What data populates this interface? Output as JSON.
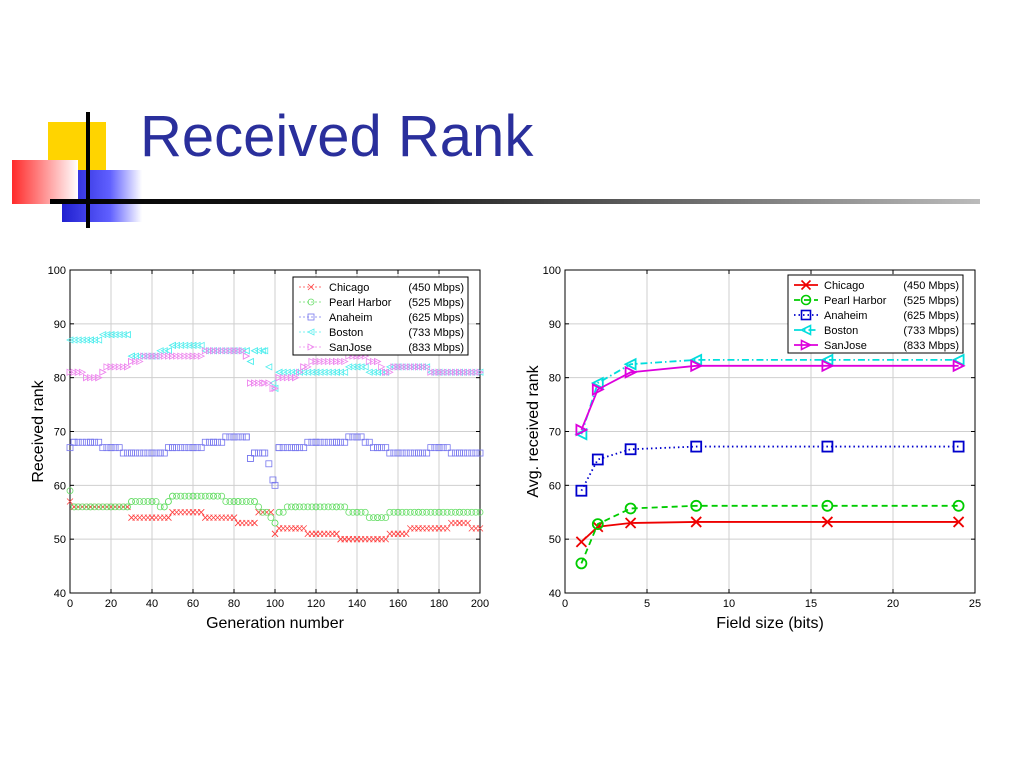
{
  "slide": {
    "title": "Received Rank",
    "colors": {
      "title": "#2a2f9c",
      "accent_yellow": "#ffd400",
      "accent_red": "#ff3030",
      "accent_blue": "#2020d0"
    }
  },
  "chart_data": [
    {
      "type": "scatter",
      "xlabel": "Generation number",
      "ylabel": "Received rank",
      "xlim": [
        0,
        200
      ],
      "ylim": [
        40,
        100
      ],
      "xticks": [
        0,
        20,
        40,
        60,
        80,
        100,
        120,
        140,
        160,
        180,
        200
      ],
      "yticks": [
        40,
        50,
        60,
        70,
        80,
        90,
        100
      ],
      "grid": true,
      "legend_position": "top-right",
      "series": [
        {
          "name": "Chicago",
          "rate": "(450 Mbps)",
          "color": "#ff4444",
          "marker": "x",
          "x": [
            0,
            2,
            10,
            20,
            28,
            30,
            40,
            48,
            50,
            60,
            64,
            66,
            80,
            82,
            90,
            92,
            98,
            100,
            102,
            110,
            120,
            130,
            132,
            134,
            136,
            140,
            150,
            160,
            170,
            180,
            190,
            200
          ],
          "y": [
            57,
            56,
            56,
            56,
            56,
            54,
            54,
            54,
            55,
            55,
            55,
            54,
            54,
            53,
            53,
            55,
            55,
            51,
            52,
            52,
            51,
            51,
            50,
            50,
            50,
            50,
            50,
            51,
            52,
            52,
            53,
            52
          ]
        },
        {
          "name": "Pearl Harbor",
          "rate": "(525 Mbps)",
          "color": "#66dd66",
          "marker": "o",
          "x": [
            0,
            2,
            10,
            20,
            28,
            30,
            40,
            46,
            48,
            50,
            60,
            70,
            80,
            82,
            90,
            100,
            102,
            110,
            120,
            130,
            140,
            150,
            160,
            170,
            180,
            190,
            200
          ],
          "y": [
            59,
            56,
            56,
            56,
            56,
            57,
            57,
            56,
            57,
            58,
            58,
            58,
            57,
            57,
            57,
            53,
            55,
            56,
            56,
            56,
            55,
            54,
            55,
            55,
            55,
            55,
            55
          ]
        },
        {
          "name": "Anaheim",
          "rate": "(625 Mbps)",
          "color": "#7777ee",
          "marker": "s",
          "x": [
            0,
            2,
            10,
            20,
            30,
            40,
            44,
            50,
            60,
            70,
            80,
            86,
            88,
            90,
            95,
            100,
            102,
            110,
            120,
            130,
            140,
            150,
            160,
            170,
            180,
            190,
            200
          ],
          "y": [
            67,
            68,
            68,
            67,
            66,
            66,
            66,
            67,
            67,
            68,
            69,
            69,
            65,
            66,
            66,
            60,
            67,
            67,
            68,
            68,
            69,
            67,
            66,
            66,
            67,
            66,
            66
          ]
        },
        {
          "name": "Boston",
          "rate": "(733 Mbps)",
          "color": "#55eeee",
          "marker": "<",
          "x": [
            0,
            10,
            20,
            28,
            30,
            40,
            48,
            50,
            60,
            70,
            80,
            86,
            88,
            90,
            95,
            100,
            102,
            110,
            120,
            130,
            140,
            150,
            160,
            170,
            180,
            190,
            200
          ],
          "y": [
            87,
            87,
            88,
            88,
            84,
            84,
            85,
            86,
            86,
            85,
            85,
            85,
            83,
            85,
            85,
            78,
            81,
            81,
            81,
            81,
            82,
            81,
            82,
            82,
            81,
            81,
            81
          ]
        },
        {
          "name": "SanJose",
          "rate": "(833 Mbps)",
          "color": "#ee88ee",
          "marker": ">",
          "x": [
            0,
            4,
            8,
            14,
            16,
            20,
            28,
            30,
            40,
            50,
            60,
            70,
            80,
            84,
            86,
            88,
            90,
            95,
            100,
            102,
            110,
            114,
            120,
            130,
            140,
            150,
            154,
            160,
            170,
            180,
            190,
            200
          ],
          "y": [
            81,
            81,
            80,
            80,
            81,
            82,
            82,
            83,
            84,
            84,
            84,
            85,
            85,
            85,
            84,
            79,
            79,
            79,
            78,
            80,
            80,
            82,
            83,
            83,
            84,
            83,
            81,
            82,
            82,
            81,
            81,
            81
          ]
        }
      ]
    },
    {
      "type": "line",
      "xlabel": "Field size (bits)",
      "ylabel": "Avg. received rank",
      "xlim": [
        0,
        25
      ],
      "ylim": [
        40,
        100
      ],
      "xticks": [
        0,
        5,
        10,
        15,
        20,
        25
      ],
      "yticks": [
        40,
        50,
        60,
        70,
        80,
        90,
        100
      ],
      "grid": true,
      "legend_position": "top-right",
      "x": [
        1,
        2,
        4,
        8,
        16,
        24
      ],
      "series": [
        {
          "name": "Chicago",
          "rate": "(450 Mbps)",
          "color": "#ee0000",
          "marker": "x",
          "dash": "solid",
          "values": [
            49.5,
            52.3,
            53.0,
            53.2,
            53.2,
            53.2
          ]
        },
        {
          "name": "Pearl Harbor",
          "rate": "(525 Mbps)",
          "color": "#00cc00",
          "marker": "o",
          "dash": "dashed",
          "values": [
            45.5,
            52.8,
            55.7,
            56.2,
            56.2,
            56.2
          ]
        },
        {
          "name": "Anaheim",
          "rate": "(625 Mbps)",
          "color": "#0000cc",
          "marker": "s",
          "dash": "dotted",
          "values": [
            59.0,
            64.8,
            66.7,
            67.2,
            67.2,
            67.2
          ]
        },
        {
          "name": "Boston",
          "rate": "(733 Mbps)",
          "color": "#00dddd",
          "marker": "<",
          "dash": "dashdot",
          "values": [
            69.5,
            79.0,
            82.5,
            83.3,
            83.3,
            83.3
          ]
        },
        {
          "name": "SanJose",
          "rate": "(833 Mbps)",
          "color": "#dd00dd",
          "marker": ">",
          "dash": "solid",
          "values": [
            70.3,
            77.8,
            81.0,
            82.2,
            82.2,
            82.2
          ]
        }
      ]
    }
  ]
}
